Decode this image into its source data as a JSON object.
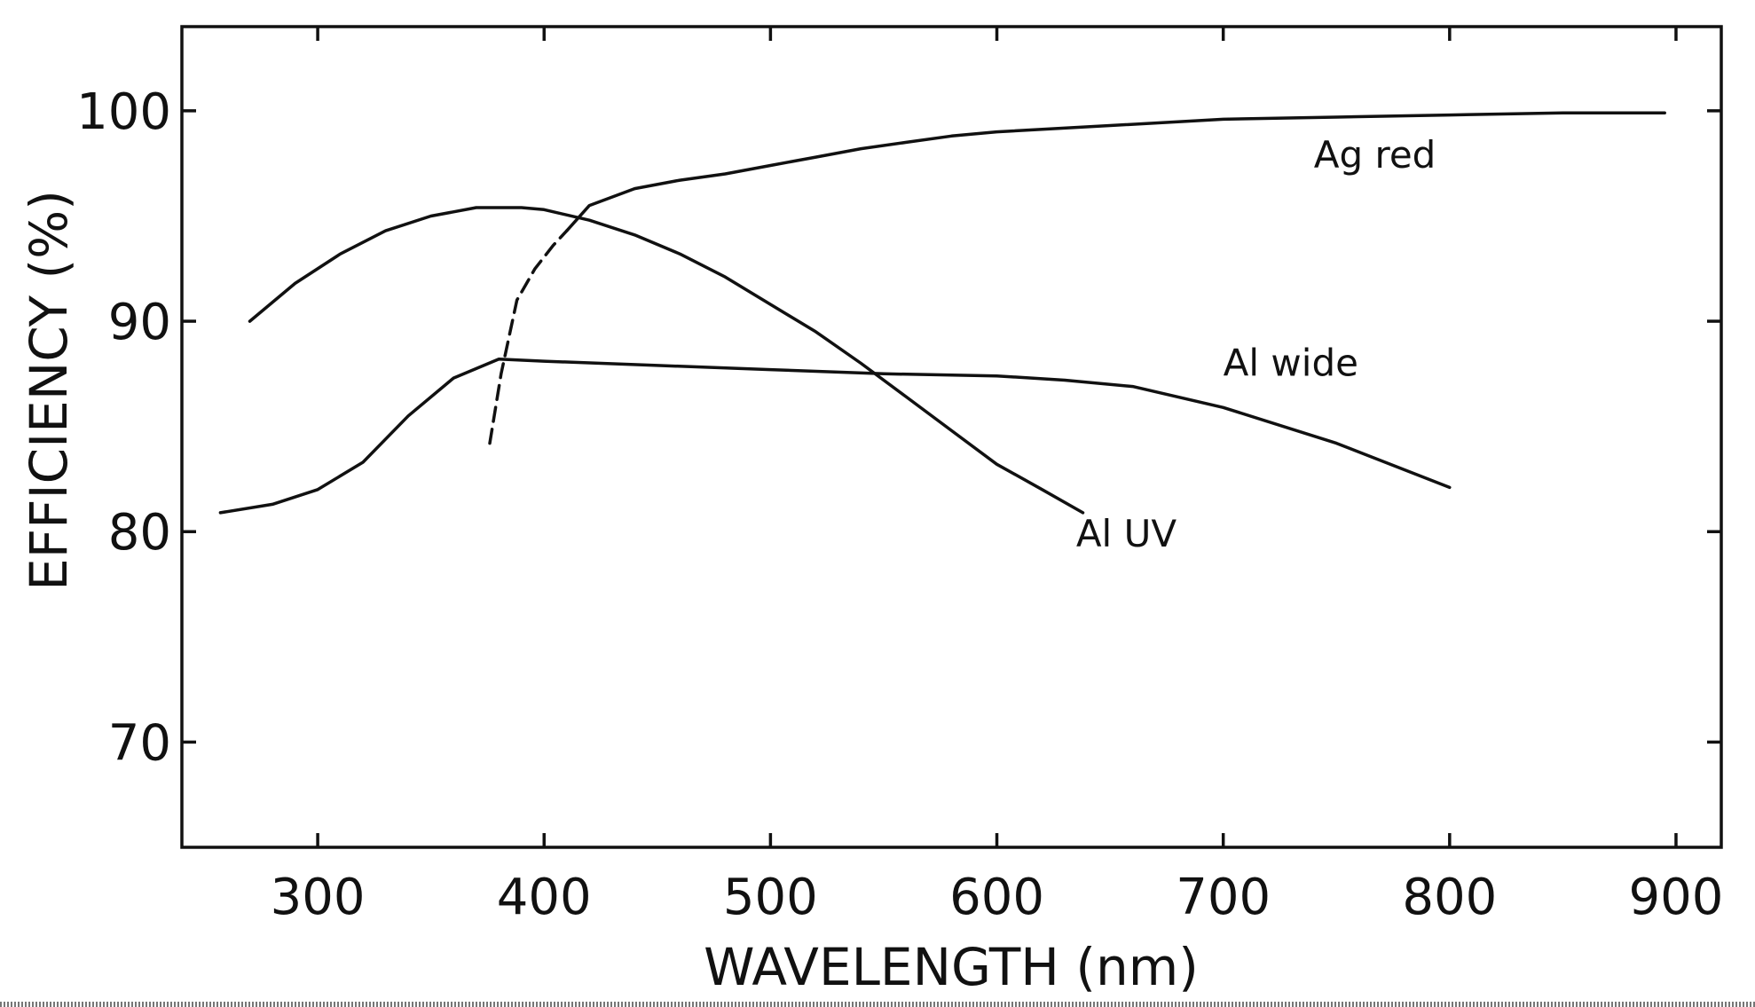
{
  "chart_data": {
    "type": "line",
    "xlabel": "WAVELENGTH  (nm)",
    "ylabel": "EFFICIENCY (%)",
    "xlim": [
      240,
      920
    ],
    "ylim": [
      65,
      104
    ],
    "x_ticks": [
      300,
      400,
      500,
      600,
      700,
      800,
      900
    ],
    "y_ticks": [
      70,
      80,
      90,
      100
    ],
    "grid": false,
    "legend": "none",
    "series": [
      {
        "name": "Ag red",
        "line_style": "solid",
        "x": [
          410,
          420,
          440,
          460,
          480,
          500,
          520,
          540,
          560,
          580,
          600,
          650,
          700,
          750,
          800,
          850,
          895
        ],
        "y": [
          94.3,
          95.5,
          96.3,
          96.7,
          97.0,
          97.4,
          97.8,
          98.2,
          98.5,
          98.8,
          99.0,
          99.3,
          99.6,
          99.7,
          99.8,
          99.9,
          99.9
        ]
      },
      {
        "name": "Ag red (dashed extension)",
        "line_style": "dashed",
        "x": [
          376,
          381,
          388,
          396,
          404,
          410
        ],
        "y": [
          84.2,
          87.5,
          91.0,
          92.5,
          93.6,
          94.3
        ]
      },
      {
        "name": "Al UV",
        "line_style": "solid",
        "x": [
          270,
          290,
          310,
          330,
          350,
          370,
          390,
          400,
          420,
          440,
          460,
          480,
          500,
          520,
          540,
          560,
          580,
          600,
          620,
          638
        ],
        "y": [
          90.0,
          91.8,
          93.2,
          94.3,
          95.0,
          95.4,
          95.4,
          95.3,
          94.8,
          94.1,
          93.2,
          92.1,
          90.8,
          89.5,
          88.0,
          86.4,
          84.8,
          83.2,
          82.0,
          80.9
        ]
      },
      {
        "name": "Al wide",
        "line_style": "solid",
        "x": [
          257,
          280,
          300,
          320,
          340,
          360,
          380,
          400,
          450,
          500,
          550,
          600,
          630,
          660,
          700,
          750,
          800
        ],
        "y": [
          80.9,
          81.3,
          82.0,
          83.3,
          85.5,
          87.3,
          88.2,
          88.1,
          87.9,
          87.7,
          87.5,
          87.4,
          87.2,
          86.9,
          85.9,
          84.2,
          82.1
        ]
      }
    ],
    "annotations": [
      {
        "text": "Ag red",
        "x": 740,
        "y": 97.3
      },
      {
        "text": "Al  wide",
        "x": 700,
        "y": 87.4
      },
      {
        "text": "Al  UV",
        "x": 635,
        "y": 79.3
      }
    ]
  }
}
